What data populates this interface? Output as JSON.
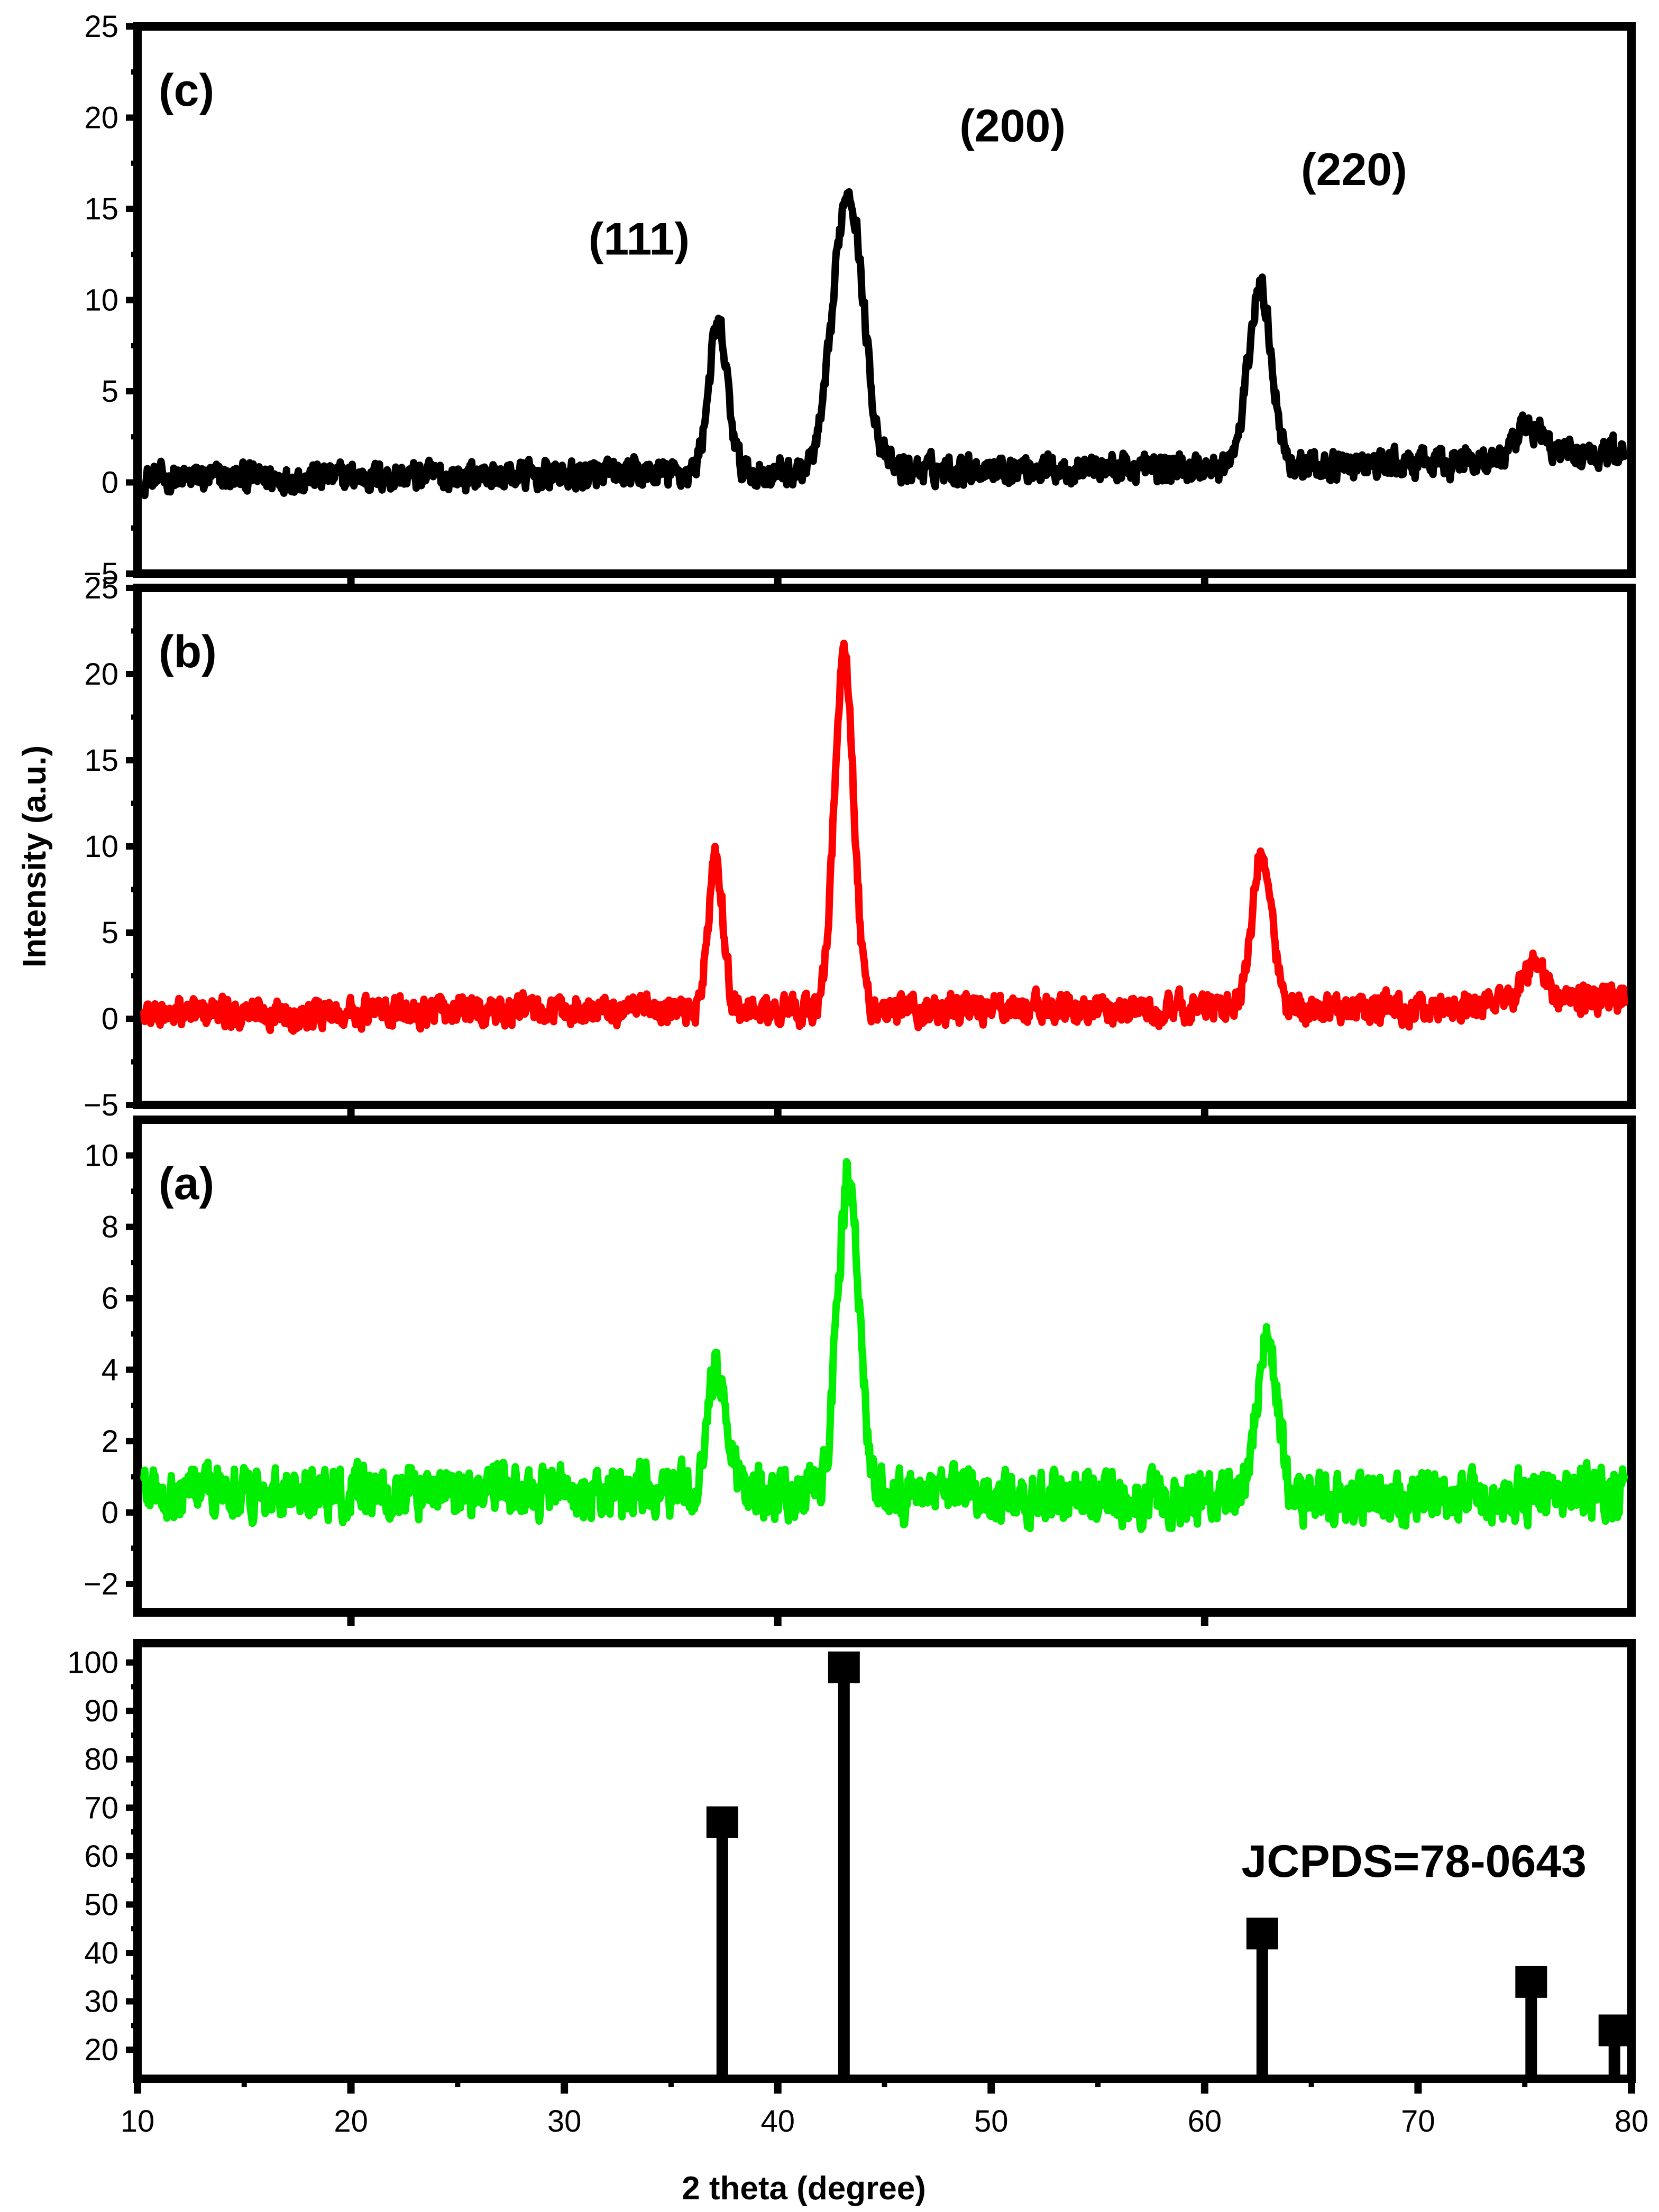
{
  "figure": {
    "xlabel": "2 theta (degree)",
    "ylabel": "Intensity (a.u.)",
    "colors": {
      "frame": "#000000",
      "c": "#000000",
      "b": "#ff0000",
      "a": "#00ee00",
      "ref": "#000000"
    }
  },
  "chart_data": [
    {
      "id": "c",
      "type": "line",
      "panel_label": "(c)",
      "xlim": [
        10,
        80
      ],
      "ylim": [
        -5,
        25
      ],
      "yticks": [
        -5,
        0,
        5,
        10,
        15,
        20,
        25
      ],
      "ytick_labels": [
        "−5",
        "0",
        "5",
        "10",
        "15",
        "20",
        "25"
      ],
      "noise_amplitude": 1.2,
      "baseline": [
        [
          10,
          0.2
        ],
        [
          20,
          0.3
        ],
        [
          30,
          0.4
        ],
        [
          40,
          0.5
        ],
        [
          50,
          0.8
        ],
        [
          60,
          0.8
        ],
        [
          70,
          1.0
        ],
        [
          80,
          1.8
        ]
      ],
      "peaks": [
        {
          "x": 37.2,
          "height": 8.0,
          "width": 0.45
        },
        {
          "x": 43.3,
          "height": 15.5,
          "width": 0.7
        },
        {
          "x": 62.6,
          "height": 9.8,
          "width": 0.55
        },
        {
          "x": 75.3,
          "height": 1.6,
          "width": 0.6
        }
      ],
      "annotations": [
        {
          "text": "(111)",
          "x": 33.5,
          "y": 12.5
        },
        {
          "text": "(200)",
          "x": 51.0,
          "y": 18.7
        },
        {
          "text": "(220)",
          "x": 67.0,
          "y": 16.3
        }
      ]
    },
    {
      "id": "b",
      "type": "line",
      "panel_label": "(b)",
      "xlim": [
        10,
        80
      ],
      "ylim": [
        -5,
        25
      ],
      "yticks": [
        -5,
        0,
        5,
        10,
        15,
        20,
        25
      ],
      "ytick_labels": [
        "−5",
        "0",
        "5",
        "10",
        "15",
        "20",
        "25"
      ],
      "noise_amplitude": 1.3,
      "baseline": [
        [
          10,
          0.3
        ],
        [
          30,
          0.5
        ],
        [
          40,
          0.4
        ],
        [
          50,
          0.6
        ],
        [
          60,
          0.6
        ],
        [
          70,
          0.6
        ],
        [
          80,
          1.2
        ]
      ],
      "peaks": [
        {
          "x": 37.1,
          "height": 8.8,
          "width": 0.35
        },
        {
          "x": 43.1,
          "height": 20.5,
          "width": 0.45
        },
        {
          "x": 62.7,
          "height": 9.2,
          "width": 0.45
        },
        {
          "x": 75.4,
          "height": 2.2,
          "width": 0.5
        }
      ],
      "annotations": []
    },
    {
      "id": "a",
      "type": "line",
      "panel_label": "(a)",
      "xlim": [
        10,
        80
      ],
      "ylim": [
        -2.8,
        11
      ],
      "yticks": [
        -2,
        0,
        2,
        4,
        6,
        8,
        10
      ],
      "ytick_labels": [
        "−2",
        "0",
        "2",
        "4",
        "6",
        "8",
        "10"
      ],
      "noise_amplitude": 1.1,
      "baseline": [
        [
          10,
          0.6
        ],
        [
          30,
          0.6
        ],
        [
          40,
          0.6
        ],
        [
          50,
          0.4
        ],
        [
          60,
          0.4
        ],
        [
          70,
          0.4
        ],
        [
          80,
          0.6
        ]
      ],
      "peaks": [
        {
          "x": 37.2,
          "height": 3.4,
          "width": 0.45
        },
        {
          "x": 43.3,
          "height": 9.0,
          "width": 0.5
        },
        {
          "x": 62.9,
          "height": 4.4,
          "width": 0.5
        }
      ],
      "annotations": []
    },
    {
      "id": "ref",
      "type": "bar",
      "panel_label": "JCPDS=78-0643",
      "xlim": [
        10,
        80
      ],
      "ylim": [
        14,
        104
      ],
      "yticks": [
        20,
        30,
        40,
        50,
        60,
        70,
        80,
        90,
        100
      ],
      "ytick_labels": [
        "20",
        "30",
        "40",
        "50",
        "60",
        "70",
        "80",
        "90",
        "100"
      ],
      "xticks": [
        10,
        20,
        30,
        40,
        50,
        60,
        70,
        80
      ],
      "xtick_labels": [
        "10",
        "20",
        "30",
        "40",
        "50",
        "60",
        "70",
        "80"
      ],
      "x": [
        37.4,
        43.1,
        62.7,
        75.3,
        79.2
      ],
      "values": [
        67,
        99,
        44,
        34,
        24
      ]
    }
  ]
}
